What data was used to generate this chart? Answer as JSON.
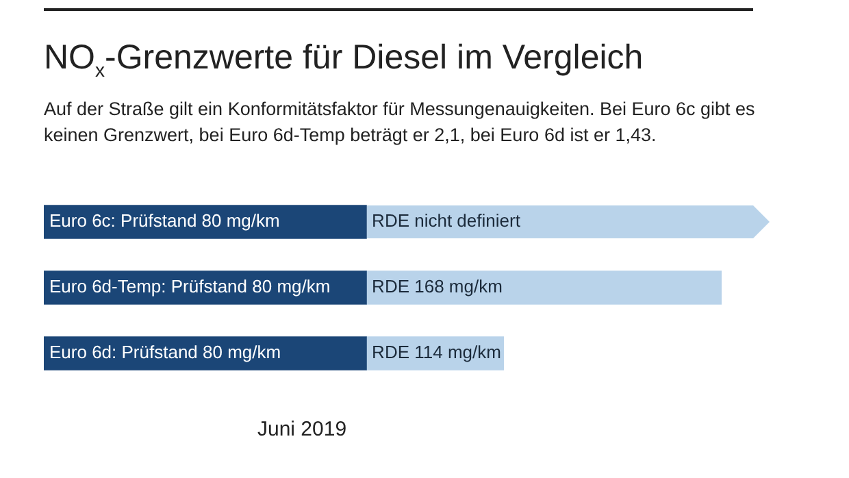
{
  "chart_data": {
    "type": "bar",
    "orientation": "horizontal",
    "stacked": true,
    "title": "NO$_{x}$-Grenzwerte für Diesel im Vergleich",
    "subtitle": "Auf der Straße gilt ein Konformitätsfaktor für Messungenauigkeiten. Bei Euro 6c gibt es keinen Grenzwert, bei Euro 6d-Temp beträgt er 2,1, bei Euro 6d ist er 1,43.",
    "categories": [
      null,
      null,
      null
    ],
    "xlim": [
      0,
      180
    ],
    "series": [
      {
        "color": "#1b4677",
        "values": [
          80,
          80,
          80
        ],
        "value_labels": [
          "Euro 6c: Prüfstand 80 mg/km",
          "Euro 6d-Temp: Prüfstand 80 mg/km",
          "Euro 6d: Prüfstand 80 mg/km"
        ]
      },
      {
        "color": "#b9d3ea",
        "values": [
          null,
          88,
          34
        ],
        "value_labels": [
          "RDE nicht definiert",
          "RDE 168 mg/km",
          "RDE 114 mg/km"
        ]
      }
    ],
    "legend": false,
    "tick_labels": false,
    "annotations": [
      "Juni 2019"
    ]
  }
}
